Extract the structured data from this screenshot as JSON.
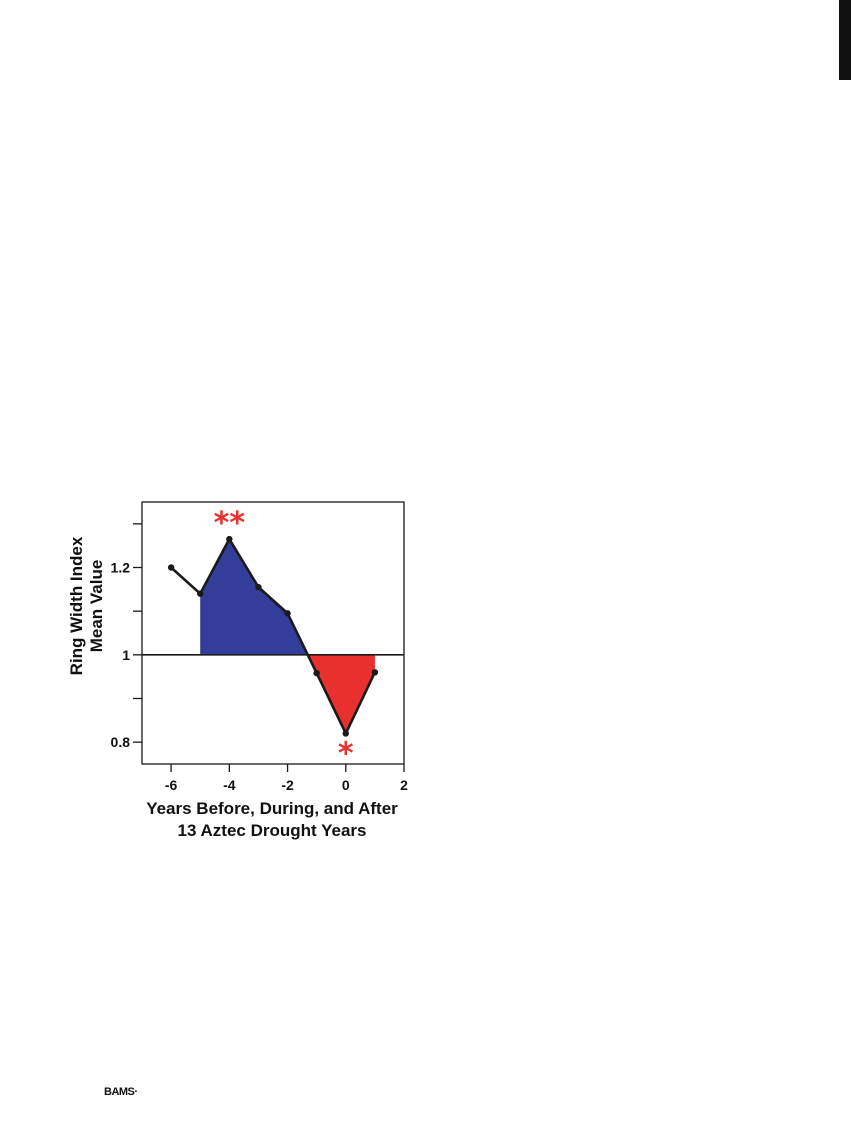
{
  "chart_data": {
    "type": "line",
    "xlabel_lines": [
      "Years Before, During, and After",
      "13 Aztec Drought Years"
    ],
    "ylabel_lines": [
      "Ring Width Index",
      "Mean Value"
    ],
    "x": [
      -6,
      -5,
      -4,
      -3,
      -2,
      -1,
      0,
      1
    ],
    "values": [
      1.2,
      1.14,
      1.265,
      1.155,
      1.095,
      0.958,
      0.82,
      0.96
    ],
    "baseline": 1,
    "xlim": [
      -7,
      2
    ],
    "ylim": [
      0.75,
      1.35
    ],
    "x_ticks": [
      -6,
      -4,
      -2,
      0,
      2
    ],
    "x_tick_labels": [
      "-6",
      "-4",
      "-2",
      "0",
      "2"
    ],
    "y_ticks": [
      0.8,
      0.9,
      1.0,
      1.1,
      1.2,
      1.3
    ],
    "y_tick_labels": [
      "0.8",
      "",
      "1",
      "",
      "1.2",
      ""
    ],
    "positive_fill_from_x": -5,
    "positive_color": "#333d9a",
    "negative_color": "#e8302e",
    "line_color": "#1a1a1a",
    "annotations": [
      {
        "text": "**",
        "x": -4,
        "position": "above",
        "color": "#e8302e"
      },
      {
        "text": "*",
        "x": 0,
        "position": "below",
        "color": "#e8302e"
      }
    ],
    "grid": false,
    "legend": "none"
  },
  "footer": {
    "mark": "BAMS·"
  }
}
